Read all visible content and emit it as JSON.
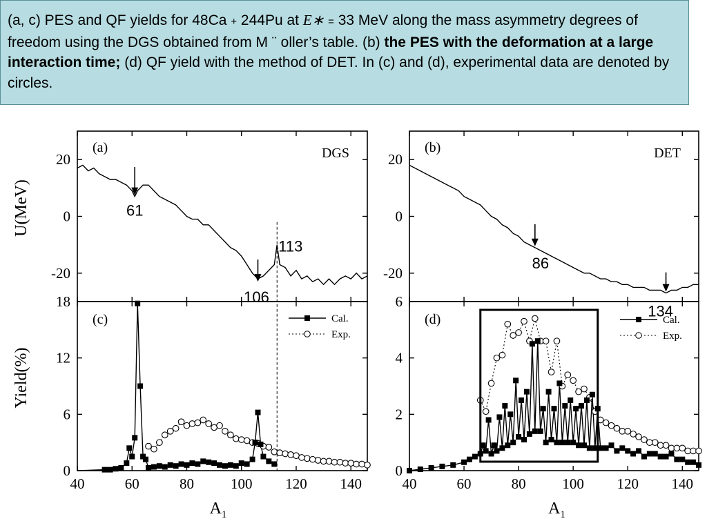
{
  "caption": {
    "p1": "(a, c) PES and QF yields for 48Ca",
    "plus": "+",
    "p2": "244Pu at",
    "estar": "E∗",
    "eq": "=",
    "p3": "33 MeV along the mass asymmetry degrees of freedom using the DGS obtained from M ¨ oller’s table. (b)",
    "bold": "the PES with the deformation at a large interaction time;",
    "p4": "(d) QF yield with the method of DET. In (c) and (d), experimental data are denoted by circles."
  },
  "colors": {
    "caption_bg": "#b7dde2",
    "ink": "#000000"
  },
  "chart_data": [
    {
      "id": "a",
      "type": "line",
      "panel_label": "(a)",
      "method": "DGS",
      "xlim": [
        40,
        146
      ],
      "ylim": [
        -30,
        30
      ],
      "yticks": [
        -20,
        0,
        20
      ],
      "ylabel": "U(MeV)",
      "x": [
        40,
        42,
        44,
        46,
        48,
        50,
        52,
        54,
        56,
        58,
        60,
        61,
        62,
        64,
        66,
        68,
        70,
        72,
        74,
        76,
        78,
        80,
        82,
        84,
        86,
        88,
        90,
        92,
        94,
        96,
        98,
        100,
        102,
        104,
        106,
        108,
        110,
        112,
        113,
        114,
        116,
        118,
        120,
        122,
        124,
        126,
        128,
        130,
        132,
        134,
        136,
        138,
        140,
        142,
        144,
        146
      ],
      "y": [
        17,
        18,
        16,
        17,
        15,
        14,
        13,
        13,
        12,
        11,
        9,
        7,
        9,
        11,
        11,
        9,
        7,
        6,
        5,
        4,
        2,
        0,
        -1,
        -1,
        -3,
        -3,
        -5,
        -7,
        -9,
        -11,
        -12,
        -14,
        -17,
        -20,
        -22,
        -21,
        -19,
        -17,
        -10,
        -17,
        -18,
        -21,
        -19,
        -22,
        -21,
        -23,
        -22,
        -24,
        -22,
        -24,
        -22,
        -21,
        -22,
        -20,
        -22,
        -21
      ],
      "annotations": [
        {
          "text": "61",
          "x": 61,
          "y": 7,
          "arrow": true
        },
        {
          "text": "106",
          "x": 106,
          "y": -22,
          "arrow": true
        },
        {
          "text": "113",
          "x": 113,
          "y": -10,
          "arrow": false
        }
      ],
      "vline": 113
    },
    {
      "id": "b",
      "type": "line",
      "panel_label": "(b)",
      "method": "DET",
      "xlim": [
        40,
        146
      ],
      "ylim": [
        -30,
        30
      ],
      "yticks": [
        -20,
        0,
        20
      ],
      "x": [
        40,
        42,
        44,
        46,
        48,
        50,
        52,
        54,
        56,
        58,
        60,
        62,
        64,
        66,
        68,
        70,
        72,
        74,
        76,
        78,
        80,
        82,
        84,
        86,
        88,
        90,
        92,
        94,
        96,
        98,
        100,
        102,
        104,
        106,
        108,
        110,
        112,
        114,
        116,
        118,
        120,
        122,
        124,
        126,
        128,
        130,
        132,
        134,
        136,
        138,
        140,
        142,
        144,
        146
      ],
      "y": [
        18,
        17,
        16,
        15,
        14,
        13,
        12,
        11,
        10,
        9,
        7,
        6,
        5,
        4,
        2,
        0,
        -1,
        -3,
        -4,
        -6,
        -7,
        -9,
        -10,
        -11,
        -12,
        -13,
        -14,
        -15,
        -16,
        -17,
        -18,
        -19,
        -20,
        -20,
        -21,
        -22,
        -22,
        -23,
        -23,
        -24,
        -24,
        -25,
        -25,
        -25,
        -26,
        -26,
        -26,
        -27,
        -26,
        -26,
        -25,
        -25,
        -24,
        -24
      ],
      "annotations": [
        {
          "text": "86",
          "x": 86,
          "y": -11,
          "arrow": true
        },
        {
          "text": "134",
          "x": 134,
          "y": -27,
          "arrow": true
        }
      ]
    },
    {
      "id": "c",
      "type": "line",
      "panel_label": "(c)",
      "xlim": [
        40,
        146
      ],
      "ylim": [
        0,
        18
      ],
      "yticks": [
        0,
        6,
        12,
        18
      ],
      "ylabel": "Yield(%)",
      "xlabel": "A1",
      "xticks": [
        40,
        60,
        80,
        100,
        120,
        140
      ],
      "legend": [
        "Cal.",
        "Exp."
      ],
      "series": [
        {
          "name": "Cal.",
          "x": [
            50,
            52,
            54,
            56,
            58,
            59,
            60,
            61,
            62,
            63,
            64,
            65,
            66,
            68,
            70,
            72,
            74,
            76,
            78,
            80,
            82,
            84,
            86,
            88,
            90,
            92,
            94,
            96,
            98,
            100,
            102,
            104,
            105,
            106,
            107,
            108,
            110,
            112
          ],
          "y": [
            0.1,
            0.1,
            0.2,
            0.3,
            0.8,
            2.4,
            1.5,
            3.5,
            17.8,
            9,
            1.5,
            1.2,
            0.3,
            0.4,
            0.5,
            0.4,
            0.6,
            0.5,
            0.7,
            0.6,
            0.8,
            0.7,
            1.0,
            0.9,
            0.8,
            0.6,
            0.5,
            0.6,
            0.5,
            0.8,
            0.7,
            1.2,
            3.0,
            6.2,
            2.8,
            1.5,
            1.0,
            0.7
          ]
        },
        {
          "name": "Exp.",
          "x": [
            66,
            68,
            70,
            72,
            74,
            76,
            78,
            80,
            82,
            84,
            86,
            88,
            90,
            92,
            94,
            96,
            98,
            100,
            102,
            104,
            106,
            108,
            110,
            112,
            114,
            116,
            118,
            120,
            122,
            124,
            126,
            128,
            130,
            132,
            134,
            136,
            138,
            140,
            142,
            144,
            146
          ],
          "y": [
            2.6,
            2.3,
            3.0,
            3.8,
            4.2,
            4.5,
            5.2,
            4.8,
            5.0,
            5.1,
            5.4,
            5.0,
            4.6,
            4.8,
            4.2,
            3.8,
            3.4,
            3.3,
            3.2,
            3.0,
            2.9,
            2.6,
            2.5,
            2.0,
            1.9,
            1.8,
            1.7,
            1.6,
            1.4,
            1.3,
            1.2,
            1.1,
            1.0,
            1.0,
            0.9,
            0.9,
            0.8,
            0.8,
            0.7,
            0.7,
            0.6
          ]
        }
      ],
      "vline": 113
    },
    {
      "id": "d",
      "type": "line",
      "panel_label": "(d)",
      "xlim": [
        40,
        146
      ],
      "ylim": [
        0,
        6
      ],
      "yticks": [
        0,
        2,
        4,
        6
      ],
      "xlabel": "A1",
      "xticks": [
        40,
        60,
        80,
        100,
        120,
        140
      ],
      "legend": [
        "Cal.",
        "Exp."
      ],
      "box": [
        66,
        109
      ],
      "series": [
        {
          "name": "Cal.",
          "x": [
            40,
            44,
            48,
            52,
            56,
            60,
            62,
            64,
            66,
            67,
            68,
            69,
            70,
            71,
            72,
            73,
            74,
            75,
            76,
            77,
            78,
            79,
            80,
            81,
            82,
            83,
            84,
            85,
            86,
            87,
            88,
            89,
            90,
            91,
            92,
            93,
            94,
            95,
            96,
            97,
            98,
            99,
            100,
            101,
            102,
            103,
            104,
            105,
            106,
            107,
            108,
            109,
            110,
            112,
            114,
            116,
            118,
            120,
            122,
            124,
            126,
            128,
            130,
            132,
            134,
            136,
            138,
            140,
            142,
            144,
            146
          ],
          "y": [
            0,
            0.05,
            0.1,
            0.15,
            0.2,
            0.3,
            0.4,
            0.5,
            0.6,
            0.9,
            0.7,
            1.8,
            0.6,
            0.9,
            0.7,
            1.9,
            0.8,
            2.3,
            0.9,
            2.0,
            1.0,
            3.2,
            1.2,
            2.5,
            1.1,
            2.8,
            1.3,
            4.5,
            1.4,
            4.6,
            1.4,
            2.2,
            1.0,
            2.8,
            1.1,
            2.2,
            1.0,
            3.1,
            1.0,
            2.3,
            1.0,
            2.5,
            1.0,
            2.2,
            0.9,
            2.3,
            0.9,
            2.5,
            0.8,
            2.7,
            0.8,
            2.2,
            0.8,
            0.8,
            0.9,
            0.7,
            0.8,
            0.7,
            0.6,
            0.7,
            0.5,
            0.6,
            0.6,
            0.5,
            0.5,
            0.6,
            0.4,
            0.4,
            0.3,
            0.3,
            0.2
          ]
        },
        {
          "name": "Exp.",
          "x": [
            66,
            68,
            70,
            72,
            74,
            76,
            78,
            80,
            82,
            84,
            86,
            88,
            90,
            92,
            94,
            96,
            98,
            100,
            102,
            104,
            106,
            108,
            110,
            112,
            114,
            116,
            118,
            120,
            122,
            124,
            126,
            128,
            130,
            132,
            134,
            136,
            138,
            140,
            142,
            144,
            146
          ],
          "y": [
            2.5,
            2.1,
            3.1,
            4.0,
            4.1,
            5.2,
            4.8,
            4.9,
            5.3,
            4.6,
            5.4,
            4.6,
            4.6,
            3.5,
            4.6,
            3.0,
            3.4,
            3.2,
            2.8,
            2.9,
            2.6,
            2.1,
            1.8,
            1.7,
            1.6,
            1.5,
            1.4,
            1.4,
            1.3,
            1.2,
            1.1,
            1.0,
            1.0,
            0.9,
            0.9,
            0.8,
            0.8,
            0.8,
            0.7,
            0.7,
            0.7
          ]
        }
      ]
    }
  ]
}
